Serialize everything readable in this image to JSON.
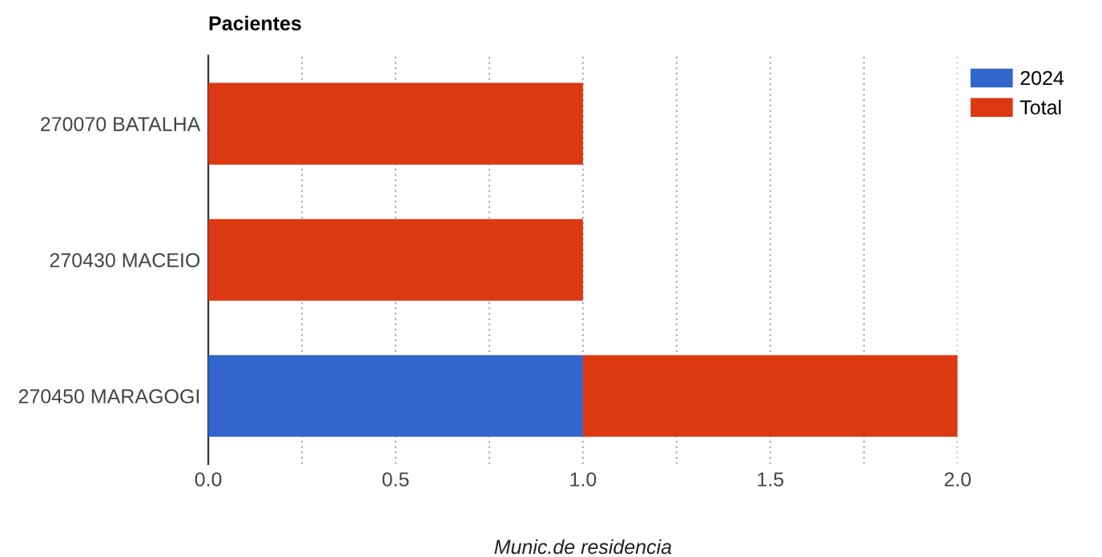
{
  "chart_data": {
    "type": "bar",
    "orientation": "horizontal",
    "stacked": true,
    "title": "Pacientes",
    "xlabel": "Munic.de residencia",
    "categories": [
      "270070 BATALHA",
      "270430 MACEIO",
      "270450 MARAGOGI"
    ],
    "series": [
      {
        "name": "2024",
        "color": "#3366cc",
        "values": [
          null,
          null,
          1
        ]
      },
      {
        "name": "Total",
        "color": "#dc3912",
        "values": [
          1,
          1,
          1
        ]
      }
    ],
    "xlim": [
      0,
      2
    ],
    "xticks": [
      {
        "value": 0,
        "label": "0.0"
      },
      {
        "value": 0.25,
        "label": null
      },
      {
        "value": 0.5,
        "label": "0.5"
      },
      {
        "value": 0.75,
        "label": null
      },
      {
        "value": 1,
        "label": "1.0"
      },
      {
        "value": 1.25,
        "label": null
      },
      {
        "value": 1.5,
        "label": "1.5"
      },
      {
        "value": 1.75,
        "label": null
      },
      {
        "value": 2,
        "label": "2.0"
      }
    ],
    "grid": "x",
    "legend": "top right"
  }
}
